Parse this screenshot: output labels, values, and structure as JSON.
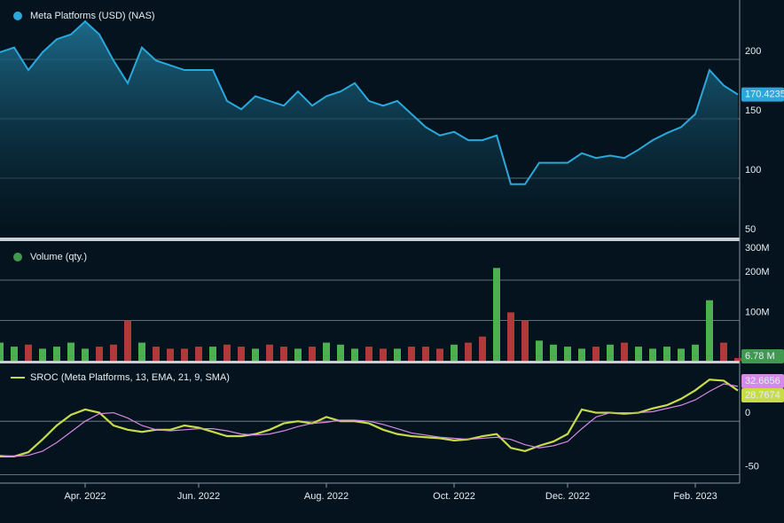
{
  "chart_data": [
    {
      "type": "area",
      "title": "Meta Platforms (USD) (NAS)",
      "color": "#2aa8dc",
      "values": [
        206,
        210,
        191,
        206,
        217,
        221,
        232,
        221,
        199,
        180,
        210,
        199,
        195,
        191,
        191,
        191,
        165,
        158,
        169,
        165,
        161,
        173,
        161,
        169,
        173,
        180,
        165,
        161,
        165,
        154,
        143,
        136,
        139,
        132,
        132,
        136,
        95,
        95,
        113,
        113,
        113,
        121,
        117,
        119,
        117,
        124,
        132,
        138,
        143,
        154,
        191,
        178,
        170.4235
      ],
      "ylim": [
        50,
        250
      ],
      "yticks": [
        50,
        100,
        150,
        200
      ],
      "grid": true
    },
    {
      "type": "bar",
      "title": "Volume (qty.)",
      "color": "#3f9a4f",
      "values": [
        45000000,
        35000000,
        40000000,
        30000000,
        35000000,
        45000000,
        30000000,
        35000000,
        40000000,
        100000000,
        45000000,
        35000000,
        30000000,
        30000000,
        35000000,
        35000000,
        40000000,
        35000000,
        30000000,
        40000000,
        35000000,
        30000000,
        35000000,
        45000000,
        40000000,
        30000000,
        35000000,
        30000000,
        30000000,
        35000000,
        35000000,
        30000000,
        40000000,
        45000000,
        60000000,
        230000000,
        120000000,
        100000000,
        50000000,
        40000000,
        35000000,
        30000000,
        35000000,
        40000000,
        45000000,
        35000000,
        30000000,
        35000000,
        30000000,
        40000000,
        150000000,
        45000000,
        6780000
      ],
      "colors": [
        "#4caf50",
        "#4caf50",
        "#b03a3a",
        "#4caf50",
        "#4caf50",
        "#4caf50",
        "#4caf50",
        "#b03a3a",
        "#b03a3a",
        "#b03a3a",
        "#4caf50",
        "#b03a3a",
        "#b03a3a",
        "#b03a3a",
        "#b03a3a",
        "#4caf50",
        "#b03a3a",
        "#b03a3a",
        "#4caf50",
        "#b03a3a",
        "#b03a3a",
        "#4caf50",
        "#b03a3a",
        "#4caf50",
        "#4caf50",
        "#4caf50",
        "#b03a3a",
        "#b03a3a",
        "#4caf50",
        "#b03a3a",
        "#b03a3a",
        "#b03a3a",
        "#4caf50",
        "#b03a3a",
        "#b03a3a",
        "#4caf50",
        "#b03a3a",
        "#b03a3a",
        "#4caf50",
        "#4caf50",
        "#4caf50",
        "#4caf50",
        "#b03a3a",
        "#4caf50",
        "#b03a3a",
        "#4caf50",
        "#4caf50",
        "#4caf50",
        "#4caf50",
        "#4caf50",
        "#4caf50",
        "#b03a3a",
        "#b03a3a"
      ],
      "last_value_label": "6.78 M",
      "ylim": [
        0,
        290000000
      ],
      "yticks": [
        {
          "value": 100000000,
          "label": "100M"
        },
        {
          "value": 200000000,
          "label": "200M"
        },
        {
          "value": 300000000,
          "label": "300M"
        }
      ],
      "grid": true
    },
    {
      "type": "line",
      "categories": [
        null,
        null,
        null,
        null,
        null,
        null,
        "Apr. 2022",
        null,
        null,
        null,
        null,
        null,
        null,
        null,
        "Jun. 2022",
        null,
        null,
        null,
        null,
        null,
        null,
        null,
        null,
        "Aug. 2022",
        null,
        null,
        null,
        null,
        null,
        null,
        null,
        null,
        "Oct. 2022",
        null,
        null,
        null,
        null,
        null,
        null,
        null,
        "Dec. 2022",
        null,
        null,
        null,
        null,
        null,
        null,
        null,
        null,
        "Feb. 2023",
        null,
        null,
        null
      ],
      "series": [
        {
          "name": "SROC (Meta Platforms, 13, EMA, 21, 9, SMA)",
          "color": "#c8dc4a",
          "values": [
            -33,
            -33,
            -29,
            -17,
            -4,
            6,
            11,
            8,
            -4,
            -8,
            -10,
            -8,
            -8,
            -4,
            -6,
            -10,
            -14,
            -14,
            -12,
            -8,
            -2,
            0,
            -2,
            4,
            0,
            0,
            -2,
            -8,
            -12,
            -14,
            -15,
            -16,
            -18,
            -17,
            -14,
            -12,
            -25,
            -28,
            -23,
            -19,
            -12,
            11,
            8,
            8,
            7,
            8,
            12,
            15,
            21,
            29,
            39,
            38,
            28.7674
          ]
        },
        {
          "color": "#d48ae6",
          "values": [
            -32,
            -33,
            -32,
            -28,
            -20,
            -10,
            0,
            7,
            8,
            3,
            -4,
            -8,
            -9,
            -8,
            -7,
            -7,
            -9,
            -12,
            -13,
            -12,
            -9,
            -5,
            -2,
            -1,
            1,
            1,
            0,
            -3,
            -7,
            -11,
            -13,
            -15,
            -16,
            -17,
            -16,
            -15,
            -17,
            -22,
            -25,
            -23,
            -19,
            -7,
            4,
            8,
            8,
            8,
            9,
            12,
            15,
            20,
            28,
            35,
            32.6656
          ]
        }
      ],
      "ylim": [
        -58,
        50
      ],
      "yticks": [
        -50,
        0
      ],
      "grid": true
    }
  ]
}
